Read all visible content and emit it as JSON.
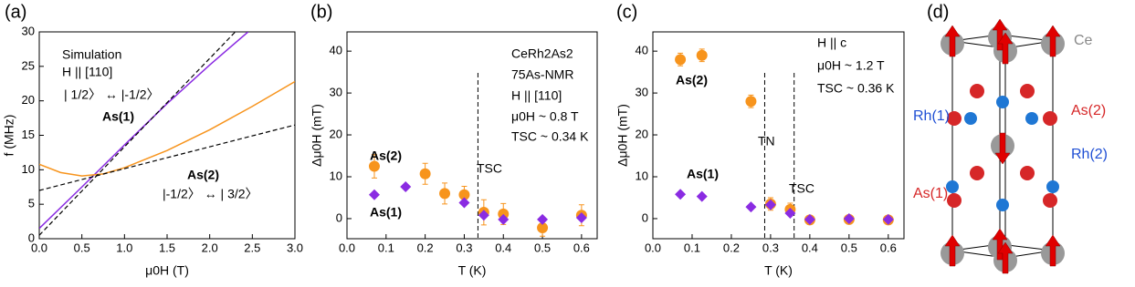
{
  "chart_data": [
    {
      "type": "line",
      "panel_label": "(a)",
      "x_label": "μ0H (T)",
      "y_label": "f (MHz)",
      "xlim": [
        0,
        3
      ],
      "ylim": [
        0,
        30
      ],
      "xticks": [
        {
          "value": 0,
          "label": "0.0"
        },
        {
          "value": 0.5,
          "label": "0.5"
        },
        {
          "value": 1,
          "label": "1.0"
        },
        {
          "value": 1.5,
          "label": "1.5"
        },
        {
          "value": 2,
          "label": "2.0"
        },
        {
          "value": 2.5,
          "label": "2.5"
        },
        {
          "value": 3,
          "label": "3.0"
        }
      ],
      "yticks": [
        0,
        5,
        10,
        15,
        20,
        25,
        30
      ],
      "series": [
        {
          "name": "As(1)",
          "color": "#8a2be2",
          "x": [
            0,
            0.5,
            1,
            1.5,
            2,
            2.45
          ],
          "values": [
            1.5,
            7.5,
            13.6,
            19.6,
            25.2,
            30
          ]
        },
        {
          "name": "As(2)",
          "color": "#f7941d",
          "x": [
            0,
            0.25,
            0.5,
            0.75,
            1,
            1.5,
            2,
            2.5,
            3
          ],
          "values": [
            10.8,
            9.6,
            9.1,
            9.4,
            10.3,
            12.8,
            15.8,
            19.2,
            22.8
          ]
        },
        {
          "color": "#000000",
          "dash": true,
          "x": [
            0,
            2.3
          ],
          "values": [
            0.5,
            30
          ]
        },
        {
          "color": "#000000",
          "dash": true,
          "x": [
            0,
            3
          ],
          "values": [
            7,
            16.5
          ]
        }
      ],
      "annotations": [
        {
          "text": "Simulation",
          "color": "#000000"
        },
        {
          "text": "H || [110]",
          "color": "#000000"
        },
        {
          "text": "| 1/2〉 ↔ |-1/2〉",
          "color": "#8a2be2"
        },
        {
          "text": "|-1/2〉 ↔ | 3/2〉",
          "color": "#f7941d"
        }
      ]
    },
    {
      "type": "scatter",
      "panel_label": "(b)",
      "x_label": "T (K)",
      "y_label": "Δμ0H (mT)",
      "xlim": [
        0,
        0.64
      ],
      "ylim": [
        -4.8,
        44.6
      ],
      "xticks": [
        {
          "value": 0,
          "label": "0.0"
        },
        {
          "value": 0.1,
          "label": "0.1"
        },
        {
          "value": 0.2,
          "label": "0.2"
        },
        {
          "value": 0.3,
          "label": "0.3"
        },
        {
          "value": 0.4,
          "label": "0.4"
        },
        {
          "value": 0.5,
          "label": "0.5"
        },
        {
          "value": 0.6,
          "label": "0.6"
        }
      ],
      "yticks": [
        0,
        10,
        20,
        30,
        40
      ],
      "series": [
        {
          "name": "As(2)",
          "color": "#f7941d",
          "marker": "circle",
          "x": [
            0.07,
            0.2,
            0.25,
            0.3,
            0.35,
            0.4,
            0.5,
            0.6
          ],
          "values": [
            12.5,
            10.7,
            6,
            5.7,
            1.5,
            1.1,
            -2.2,
            0.8
          ],
          "errors": [
            2.8,
            2.5,
            2.5,
            2,
            3,
            2.5,
            2,
            2.5
          ]
        },
        {
          "name": "As(1)",
          "color": "#8a2be2",
          "marker": "diamond",
          "x": [
            0.07,
            0.15,
            0.3,
            0.35,
            0.4,
            0.5,
            0.6
          ],
          "values": [
            5.7,
            7.6,
            3.8,
            0.8,
            -0.2,
            -0.2,
            0.2
          ]
        }
      ],
      "vlines": [
        {
          "value": 0.335,
          "label": "TSC"
        }
      ],
      "annotations": [
        {
          "text": "CeRh2As2",
          "color": "#000000"
        },
        {
          "text": "75As-NMR",
          "color": "#000000"
        },
        {
          "text": "H || [110]",
          "color": "#000000"
        },
        {
          "text": "μ0H ~ 0.8 T",
          "color": "#000000"
        },
        {
          "text": "TSC ~ 0.34 K",
          "color": "#000000"
        }
      ]
    },
    {
      "type": "scatter",
      "panel_label": "(c)",
      "x_label": "T (K)",
      "y_label": "Δμ0H (mT)",
      "xlim": [
        0,
        0.64
      ],
      "ylim": [
        -4.8,
        44.6
      ],
      "xticks": [
        {
          "value": 0,
          "label": "0.0"
        },
        {
          "value": 0.1,
          "label": "0.1"
        },
        {
          "value": 0.2,
          "label": "0.2"
        },
        {
          "value": 0.3,
          "label": "0.3"
        },
        {
          "value": 0.4,
          "label": "0.4"
        },
        {
          "value": 0.5,
          "label": "0.5"
        },
        {
          "value": 0.6,
          "label": "0.6"
        }
      ],
      "yticks": [
        0,
        10,
        20,
        30,
        40
      ],
      "series": [
        {
          "name": "As(2)",
          "color": "#f7941d",
          "marker": "circle",
          "x": [
            0.07,
            0.125,
            0.25,
            0.3,
            0.35,
            0.4,
            0.5,
            0.6
          ],
          "values": [
            38,
            39,
            28,
            3.5,
            2.2,
            -0.3,
            -0.2,
            -0.3
          ],
          "errors": [
            1.5,
            1.5,
            1.5,
            1.5,
            1.5,
            1,
            1,
            1
          ]
        },
        {
          "name": "As(1)",
          "color": "#8a2be2",
          "marker": "diamond",
          "x": [
            0.07,
            0.125,
            0.25,
            0.3,
            0.35,
            0.4,
            0.5,
            0.6
          ],
          "values": [
            5.8,
            5.3,
            2.8,
            3.3,
            1.3,
            -0.2,
            0,
            -0.2
          ]
        }
      ],
      "vlines": [
        {
          "value": 0.285,
          "label": "TN"
        },
        {
          "value": 0.36,
          "label": "TSC"
        }
      ],
      "annotations": [
        {
          "text": "H || c",
          "color": "#000000"
        },
        {
          "text": "μ0H ~ 1.2 T",
          "color": "#000000"
        },
        {
          "text": "TSC ~ 0.36 K",
          "color": "#000000"
        }
      ]
    }
  ],
  "structure": {
    "panel_label": "(d)",
    "labels": [
      "Ce",
      "Rh(1)",
      "As(2)",
      "Rh(2)",
      "As(1)"
    ]
  }
}
